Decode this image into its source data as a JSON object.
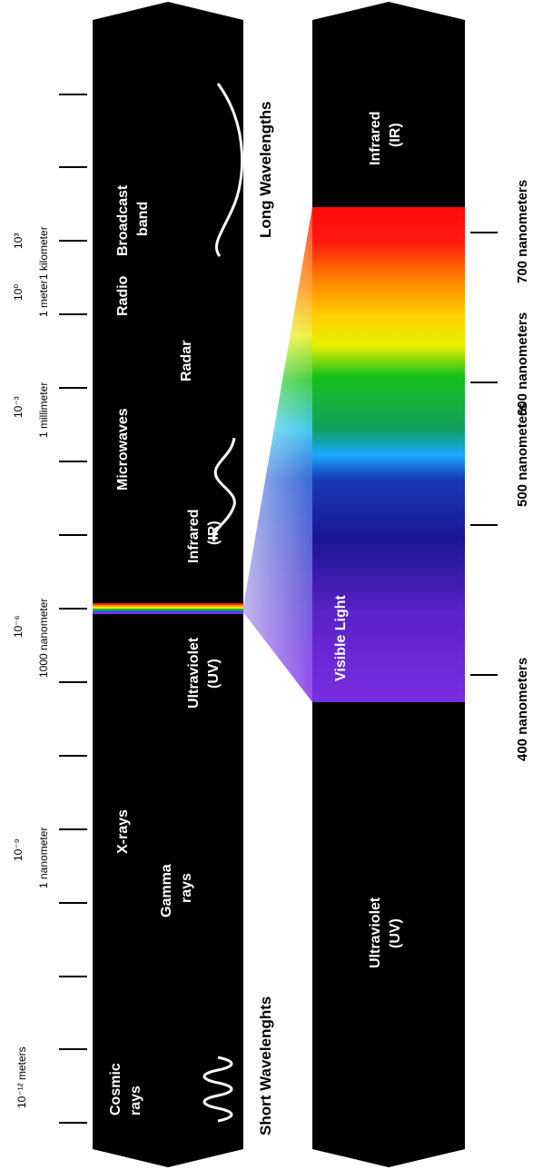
{
  "scale_labels": [
    {
      "line1": "10⁻¹² meters",
      "line2": ""
    },
    {
      "line1": "10⁻⁹",
      "line2": "1 nanometer"
    },
    {
      "line1": "10⁻⁶",
      "line2": "1000 nanometer"
    },
    {
      "line1": "10⁻³",
      "line2": "1 millimeter"
    },
    {
      "line1": "10⁰",
      "line2": "1 meter"
    },
    {
      "line1": "10³",
      "line2": "1 kilometer"
    }
  ],
  "bands": {
    "cosmic": [
      "Cosmic",
      "rays"
    ],
    "gamma": [
      "Gamma",
      "rays"
    ],
    "xrays": [
      "X-rays"
    ],
    "uv": [
      "Ultraviolet",
      "(UV)"
    ],
    "ir": [
      "Infrared",
      "(IR)"
    ],
    "microwaves": [
      "Microwaves"
    ],
    "radar": [
      "Radar"
    ],
    "radio": [
      "Radio"
    ],
    "broadcast": [
      "Broadcast",
      "band"
    ]
  },
  "short_wavelengths": "Short Wavelenghts",
  "long_wavelengths": "Long Wavelengths",
  "visible_bar": {
    "uv": [
      "Ultraviolet",
      "(UV)"
    ],
    "visible_light": "Visible Light",
    "ir": [
      "Infrared",
      "(IR)"
    ]
  },
  "nm_labels": [
    "400 nanometers",
    "500 nanometers",
    "600 nanometers",
    "700 nanometers"
  ],
  "colors": {
    "bar": "#000000",
    "violet": "#8a2be2",
    "blue": "#1a1aa0",
    "cyan": "#1aa0ff",
    "green": "#10b010",
    "yellow": "#f0f000",
    "orange": "#ff9900",
    "red": "#ff1010"
  }
}
